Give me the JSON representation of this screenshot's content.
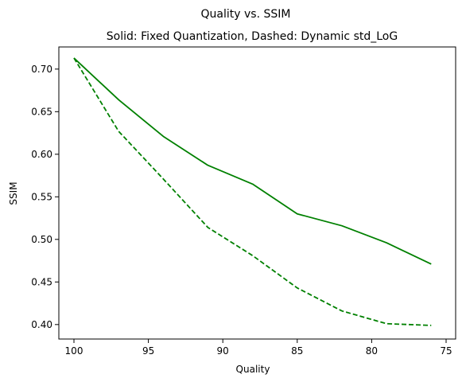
{
  "chart_data": {
    "type": "line",
    "suptitle": "Quality vs. SSIM",
    "title": "Solid: Fixed Quantization, Dashed: Dynamic std_LoG",
    "xlabel": "Quality",
    "ylabel": "SSIM",
    "x_inverted": true,
    "xlim": [
      100.0,
      75.0
    ],
    "ylim": [
      0.383,
      0.726
    ],
    "x_ticks": [
      100,
      95,
      90,
      85,
      80,
      75
    ],
    "y_ticks": [
      0.4,
      0.45,
      0.5,
      0.55,
      0.6,
      0.65,
      0.7
    ],
    "x_tick_labels": [
      "100",
      "95",
      "90",
      "85",
      "80",
      "75"
    ],
    "y_tick_labels": [
      "0.40",
      "0.45",
      "0.50",
      "0.55",
      "0.60",
      "0.65",
      "0.70"
    ],
    "grid": false,
    "x": [
      100,
      97,
      94,
      91,
      88,
      85,
      82,
      79,
      76
    ],
    "series": [
      {
        "style": "solid",
        "color": "#008000",
        "values": [
          0.713,
          0.664,
          0.621,
          0.587,
          0.565,
          0.53,
          0.516,
          0.496,
          0.471
        ]
      },
      {
        "style": "dashed",
        "color": "#008000",
        "values": [
          0.713,
          0.627,
          0.571,
          0.514,
          0.481,
          0.443,
          0.416,
          0.401,
          0.399
        ]
      }
    ]
  }
}
